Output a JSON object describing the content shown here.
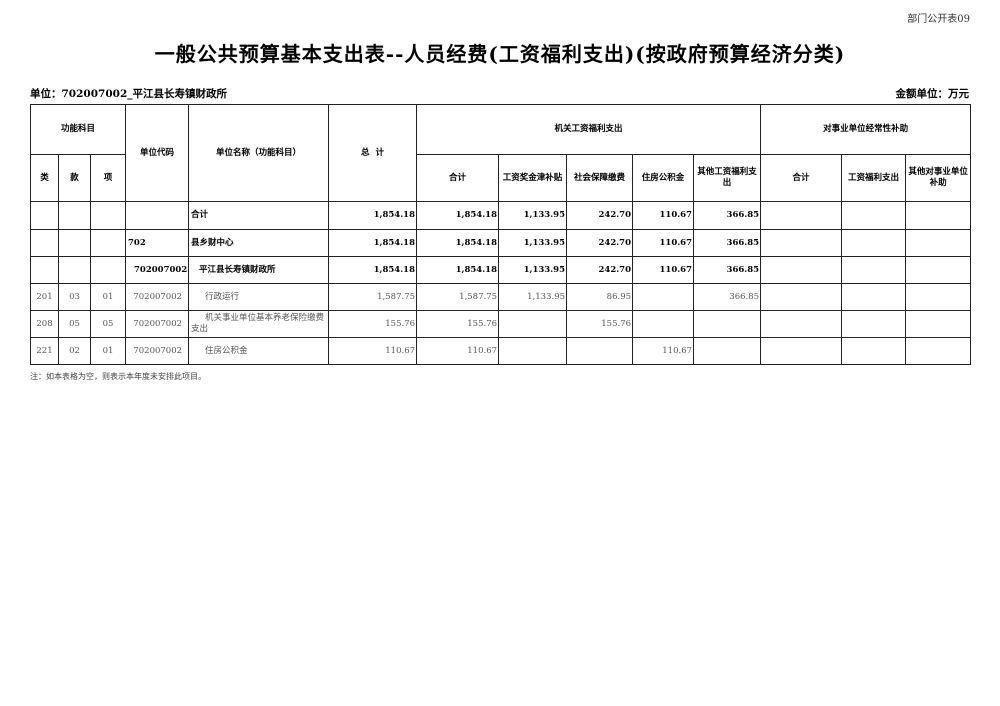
{
  "tag": "部门公开表09",
  "title": "一般公共预算基本支出表--人员经费(工资福利支出)(按政府预算经济分类)",
  "unit": "单位：702007002_平江县长寿镇财政所",
  "money_unit": "金额单位：万元",
  "headers": {
    "func": "功能科目",
    "lei": "类",
    "kuan": "款",
    "xiang": "项",
    "code": "单位代码",
    "name": "单位名称（功能科目）",
    "total": "总  计",
    "group1": "机关工资福利支出",
    "group2": "对事业单位经常性补助",
    "g1": [
      "合计",
      "工资奖金津补贴",
      "社会保障缴费",
      "住房公积金",
      "其他工资福利支出"
    ],
    "g2": [
      "合计",
      "工资福利支出",
      "其他对事业单位补助"
    ]
  },
  "rows": [
    {
      "lei": "",
      "kuan": "",
      "xiang": "",
      "code": "",
      "name": "合计",
      "vals": [
        "1,854.18",
        "1,854.18",
        "1,133.95",
        "242.70",
        "110.67",
        "366.85",
        "",
        "",
        ""
      ]
    },
    {
      "lei": "",
      "kuan": "",
      "xiang": "",
      "code": "702",
      "name": "县乡财中心",
      "vals": [
        "1,854.18",
        "1,854.18",
        "1,133.95",
        "242.70",
        "110.67",
        "366.85",
        "",
        "",
        ""
      ]
    },
    {
      "lei": "",
      "kuan": "",
      "xiang": "",
      "code": "702007002",
      "name": "平江县长寿镇财政所",
      "vals": [
        "1,854.18",
        "1,854.18",
        "1,133.95",
        "242.70",
        "110.67",
        "366.85",
        "",
        "",
        ""
      ]
    },
    {
      "lei": "201",
      "kuan": "03",
      "xiang": "01",
      "code": "702007002",
      "name": "行政运行",
      "vals": [
        "1,587.75",
        "1,587.75",
        "1,133.95",
        "86.95",
        "",
        "366.85",
        "",
        "",
        ""
      ]
    },
    {
      "lei": "208",
      "kuan": "05",
      "xiang": "05",
      "code": "702007002",
      "name": "机关事业单位基本养老保险缴费支出",
      "vals": [
        "155.76",
        "155.76",
        "",
        "155.76",
        "",
        "",
        "",
        "",
        ""
      ]
    },
    {
      "lei": "221",
      "kuan": "02",
      "xiang": "01",
      "code": "702007002",
      "name": "住房公积金",
      "vals": [
        "110.67",
        "110.67",
        "",
        "",
        "110.67",
        "",
        "",
        "",
        ""
      ]
    }
  ],
  "note": "注：如本表格为空，则表示本年度未安排此项目。"
}
